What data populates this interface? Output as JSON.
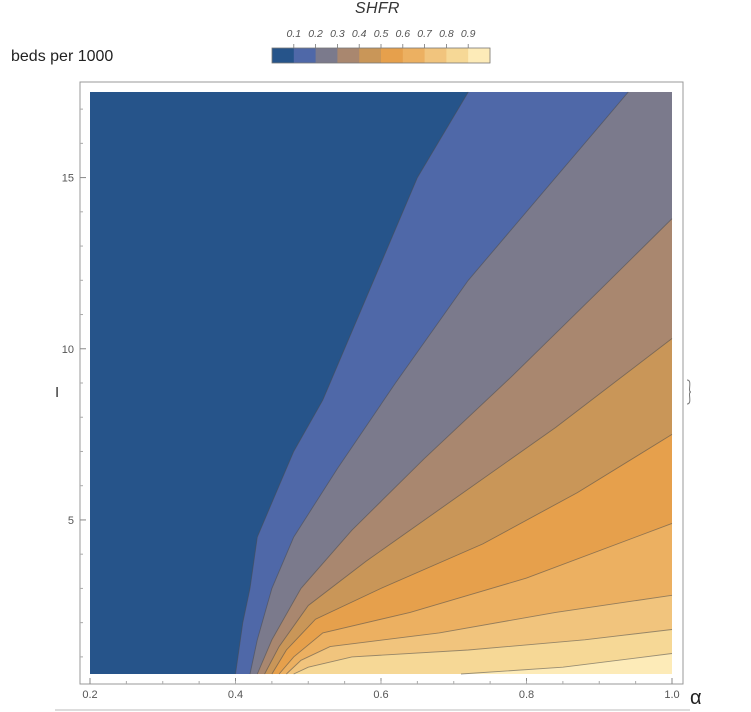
{
  "chart_data": {
    "type": "contour",
    "title": "",
    "xlabel": "α",
    "ylabel": "I",
    "y_unit_label": "beds per 1000",
    "xlim": [
      0.2,
      1.0
    ],
    "ylim": [
      0.5,
      17.5
    ],
    "x_ticks": [
      "0.2",
      "0.4",
      "0.6",
      "0.8",
      "1.0"
    ],
    "y_ticks": [
      "5",
      "10",
      "15"
    ],
    "legend": {
      "title": "SHFR",
      "labels": [
        "0.1",
        "0.2",
        "0.3",
        "0.4",
        "0.5",
        "0.6",
        "0.7",
        "0.8",
        "0.9"
      ],
      "colors": [
        "#26548a",
        "#4f68a8",
        "#7b7a8c",
        "#a9876f",
        "#c99658",
        "#e6a04c",
        "#ecb061",
        "#f1c47d",
        "#f6d896",
        "#fdebb8"
      ]
    },
    "contours": [
      {
        "level": 0.1,
        "points": [
          [
            0.4,
            0.5
          ],
          [
            0.41,
            2.0
          ],
          [
            0.42,
            3.0
          ],
          [
            0.43,
            4.5
          ],
          [
            0.46,
            6.0
          ],
          [
            0.48,
            7.0
          ],
          [
            0.52,
            8.5
          ],
          [
            0.56,
            10.5
          ],
          [
            0.6,
            12.5
          ],
          [
            0.65,
            15.0
          ],
          [
            0.72,
            17.5
          ]
        ]
      },
      {
        "level": 0.2,
        "points": [
          [
            0.42,
            0.5
          ],
          [
            0.43,
            1.5
          ],
          [
            0.45,
            3.0
          ],
          [
            0.48,
            4.5
          ],
          [
            0.54,
            6.5
          ],
          [
            0.62,
            9.0
          ],
          [
            0.72,
            12.0
          ],
          [
            0.82,
            14.5
          ],
          [
            0.9,
            16.5
          ],
          [
            0.94,
            17.5
          ]
        ]
      },
      {
        "level": 0.3,
        "points": [
          [
            0.43,
            0.5
          ],
          [
            0.45,
            1.5
          ],
          [
            0.49,
            3.0
          ],
          [
            0.56,
            4.7
          ],
          [
            0.66,
            6.8
          ],
          [
            0.78,
            9.2
          ],
          [
            0.9,
            11.7
          ],
          [
            1.0,
            13.8
          ]
        ]
      },
      {
        "level": 0.4,
        "points": [
          [
            0.44,
            0.5
          ],
          [
            0.46,
            1.3
          ],
          [
            0.5,
            2.5
          ],
          [
            0.58,
            3.8
          ],
          [
            0.7,
            5.6
          ],
          [
            0.84,
            7.7
          ],
          [
            1.0,
            10.3
          ]
        ]
      },
      {
        "level": 0.5,
        "points": [
          [
            0.45,
            0.5
          ],
          [
            0.47,
            1.2
          ],
          [
            0.51,
            2.1
          ],
          [
            0.6,
            3.0
          ],
          [
            0.74,
            4.3
          ],
          [
            0.87,
            5.8
          ],
          [
            1.0,
            7.5
          ]
        ]
      },
      {
        "level": 0.6,
        "points": [
          [
            0.46,
            0.5
          ],
          [
            0.48,
            1.0
          ],
          [
            0.52,
            1.7
          ],
          [
            0.64,
            2.3
          ],
          [
            0.8,
            3.3
          ],
          [
            1.0,
            4.9
          ]
        ]
      },
      {
        "level": 0.7,
        "points": [
          [
            0.47,
            0.5
          ],
          [
            0.49,
            0.9
          ],
          [
            0.53,
            1.3
          ],
          [
            0.68,
            1.7
          ],
          [
            0.84,
            2.3
          ],
          [
            1.0,
            2.8
          ]
        ]
      },
      {
        "level": 0.8,
        "points": [
          [
            0.48,
            0.5
          ],
          [
            0.5,
            0.7
          ],
          [
            0.56,
            1.0
          ],
          [
            0.72,
            1.2
          ],
          [
            0.88,
            1.5
          ],
          [
            1.0,
            1.8
          ]
        ]
      },
      {
        "level": 0.9,
        "points": [
          [
            0.71,
            0.5
          ],
          [
            0.85,
            0.7
          ],
          [
            1.0,
            1.1
          ]
        ]
      }
    ]
  }
}
